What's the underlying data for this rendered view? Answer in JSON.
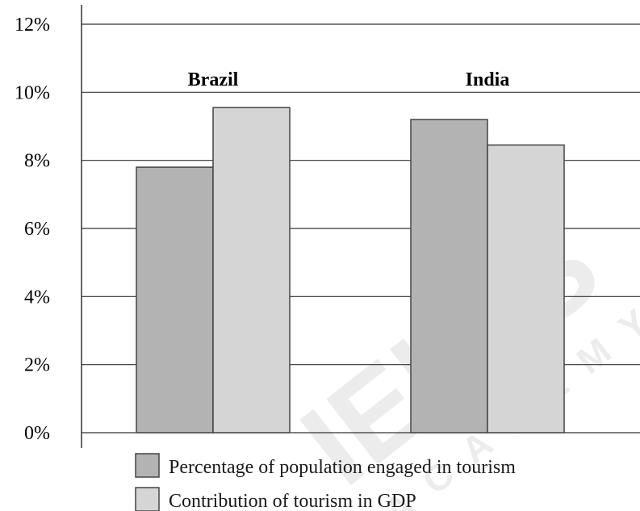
{
  "chart_data": {
    "type": "bar",
    "categories": [
      "Brazil",
      "India"
    ],
    "series": [
      {
        "name": "Percentage of population engaged in tourism",
        "values": [
          7.8,
          9.2
        ],
        "color": "#b3b3b3"
      },
      {
        "name": "Contribution of tourism in GDP",
        "values": [
          9.55,
          8.45
        ],
        "color": "#d5d5d5"
      }
    ],
    "title": "",
    "xlabel": "",
    "ylabel": "",
    "ylim": [
      0,
      12
    ],
    "yticks": [
      0,
      2,
      4,
      6,
      8,
      10,
      12
    ],
    "ytick_labels": [
      "0%",
      "2%",
      "4%",
      "6%",
      "8%",
      "10%",
      "12%"
    ],
    "grid": true,
    "legend_position": "bottom",
    "bar_border_color": "#444444",
    "grid_color": "#333333"
  },
  "watermark": {
    "text": "IELTS",
    "subtext": "ACADEMY"
  }
}
